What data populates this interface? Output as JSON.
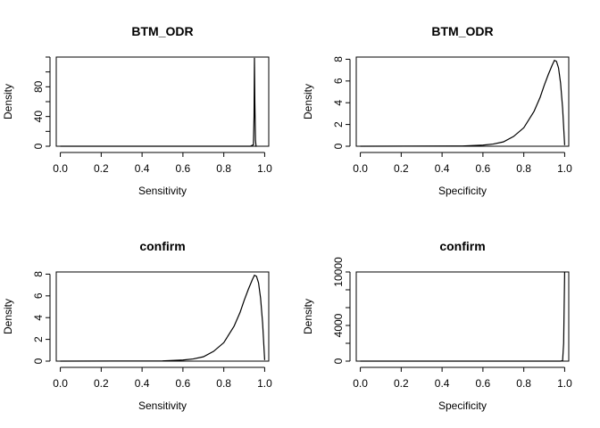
{
  "chart_data": [
    {
      "type": "line",
      "title": "BTM_ODR",
      "xlabel": "Sensitivity",
      "ylabel": "Density",
      "xlim": [
        -0.02,
        1.02
      ],
      "ylim": [
        0,
        120
      ],
      "xticks": [
        0.0,
        0.2,
        0.4,
        0.6,
        0.8,
        1.0
      ],
      "xtick_labels": [
        "0.0",
        "0.2",
        "0.4",
        "0.6",
        "0.8",
        "1.0"
      ],
      "yticks": [
        0,
        20,
        40,
        60,
        80,
        100,
        120
      ],
      "ytick_labels": [
        "0",
        "",
        "40",
        "",
        "80",
        "",
        ""
      ],
      "series": [
        {
          "x": [
            0.0,
            0.2,
            0.4,
            0.6,
            0.8,
            0.93,
            0.945,
            0.948,
            0.95,
            0.952,
            0.955,
            0.958,
            0.96
          ],
          "y": [
            0,
            0,
            0,
            0,
            0,
            0,
            2,
            40,
            119,
            60,
            8,
            0,
            0
          ]
        }
      ]
    },
    {
      "type": "line",
      "title": "BTM_ODR",
      "xlabel": "Specificity",
      "ylabel": "Density",
      "xlim": [
        -0.02,
        1.02
      ],
      "ylim": [
        0,
        8.2
      ],
      "xticks": [
        0.0,
        0.2,
        0.4,
        0.6,
        0.8,
        1.0
      ],
      "xtick_labels": [
        "0.0",
        "0.2",
        "0.4",
        "0.6",
        "0.8",
        "1.0"
      ],
      "yticks": [
        0,
        2,
        4,
        6,
        8
      ],
      "ytick_labels": [
        "0",
        "2",
        "4",
        "6",
        "8"
      ],
      "series": [
        {
          "x": [
            0.0,
            0.5,
            0.6,
            0.65,
            0.7,
            0.75,
            0.8,
            0.85,
            0.88,
            0.9,
            0.92,
            0.94,
            0.95,
            0.96,
            0.97,
            0.98,
            0.99,
            1.0
          ],
          "y": [
            0,
            0.02,
            0.1,
            0.2,
            0.4,
            0.9,
            1.7,
            3.2,
            4.5,
            5.6,
            6.6,
            7.5,
            7.9,
            7.8,
            7.2,
            5.8,
            3.5,
            0.1
          ]
        }
      ]
    },
    {
      "type": "line",
      "title": "confirm",
      "xlabel": "Sensitivity",
      "ylabel": "Density",
      "xlim": [
        -0.02,
        1.02
      ],
      "ylim": [
        0,
        8.2
      ],
      "xticks": [
        0.0,
        0.2,
        0.4,
        0.6,
        0.8,
        1.0
      ],
      "xtick_labels": [
        "0.0",
        "0.2",
        "0.4",
        "0.6",
        "0.8",
        "1.0"
      ],
      "yticks": [
        0,
        2,
        4,
        6,
        8
      ],
      "ytick_labels": [
        "0",
        "2",
        "4",
        "6",
        "8"
      ],
      "series": [
        {
          "x": [
            0.0,
            0.5,
            0.6,
            0.65,
            0.7,
            0.75,
            0.8,
            0.85,
            0.88,
            0.9,
            0.92,
            0.94,
            0.95,
            0.96,
            0.97,
            0.98,
            0.99,
            1.0
          ],
          "y": [
            0,
            0.02,
            0.1,
            0.2,
            0.4,
            0.9,
            1.7,
            3.2,
            4.5,
            5.6,
            6.6,
            7.5,
            7.9,
            7.8,
            7.2,
            5.8,
            3.5,
            0.1
          ]
        }
      ]
    },
    {
      "type": "line",
      "title": "confirm",
      "xlabel": "Specificity",
      "ylabel": "Density",
      "xlim": [
        -0.02,
        1.02
      ],
      "ylim": [
        0,
        10000
      ],
      "xticks": [
        0.0,
        0.2,
        0.4,
        0.6,
        0.8,
        1.0
      ],
      "xtick_labels": [
        "0.0",
        "0.2",
        "0.4",
        "0.6",
        "0.8",
        "1.0"
      ],
      "yticks": [
        0,
        2000,
        4000,
        6000,
        8000,
        10000
      ],
      "ytick_labels": [
        "0",
        "",
        "4000",
        "",
        "",
        "10000"
      ],
      "series": [
        {
          "x": [
            0.0,
            0.2,
            0.4,
            0.6,
            0.8,
            0.98,
            0.99,
            0.995,
            1.0
          ],
          "y": [
            0,
            0,
            0,
            0,
            0,
            0,
            50,
            2000,
            10000
          ]
        }
      ]
    }
  ]
}
